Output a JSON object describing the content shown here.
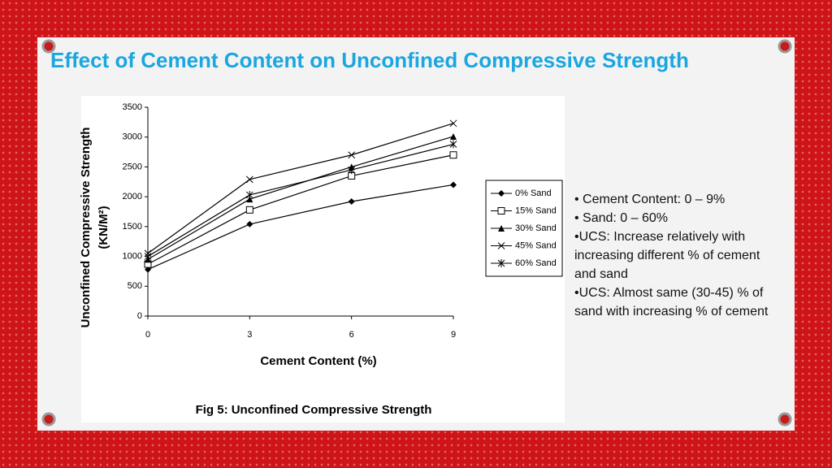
{
  "slide": {
    "title": "Effect of Cement Content on Unconfined Compressive Strength",
    "caption": "Fig 5: Unconfined Compressive Strength",
    "bullets": [
      "• Cement Content: 0 – 9%",
      "• Sand: 0 – 60%",
      "•UCS: Increase relatively with increasing different % of cement and sand",
      "•UCS: Almost same (30-45) % of sand with increasing % of cement"
    ]
  },
  "chart_data": {
    "type": "line",
    "xlabel": "Cement Content (%)",
    "ylabel": [
      "Unconfined Compressive Strength",
      "(KN/M²)"
    ],
    "x": [
      0,
      3,
      6,
      9
    ],
    "xlim": [
      0,
      9
    ],
    "xticks": [
      0,
      3,
      6,
      9
    ],
    "ylim": [
      0,
      3500
    ],
    "yticks": [
      0,
      500,
      1000,
      1500,
      2000,
      2500,
      3000,
      3500
    ],
    "series": [
      {
        "name": "0% Sand",
        "color": "#000000",
        "marker": "diamond",
        "values": [
          780,
          1540,
          1920,
          2200
        ]
      },
      {
        "name": "15% Sand",
        "color": "#000000",
        "marker": "square",
        "values": [
          870,
          1780,
          2350,
          2700
        ]
      },
      {
        "name": "30% Sand",
        "color": "#000000",
        "marker": "triangle",
        "values": [
          950,
          1960,
          2500,
          3010
        ]
      },
      {
        "name": "45% Sand",
        "color": "#000000",
        "marker": "x",
        "values": [
          1050,
          2290,
          2700,
          3230
        ]
      },
      {
        "name": "60% Sand",
        "color": "#000000",
        "marker": "star",
        "values": [
          1000,
          2030,
          2450,
          2880
        ]
      }
    ]
  }
}
